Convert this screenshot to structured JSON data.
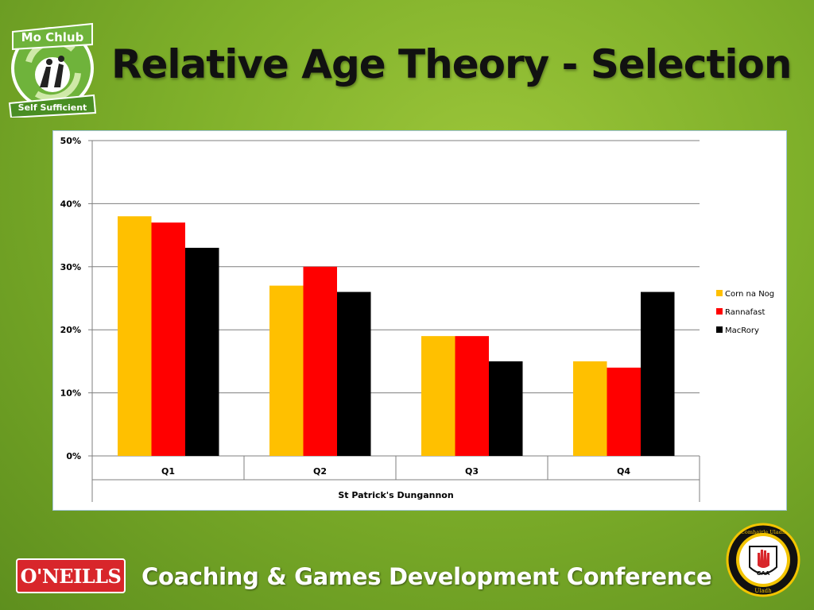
{
  "slide": {
    "title": "Relative Age Theory - Selection",
    "footer_brand": "O'NEILLS",
    "footer_text": "Coaching & Games Development Conference"
  },
  "logos": {
    "club_top": "Mo Chlub",
    "club_bottom": "Self Sufficient",
    "gaa_ring_top": "Comhairle Uladh",
    "gaa_ring_bottom": "Uladh",
    "gaa_mark": "GAA"
  },
  "colors": {
    "series_1": "#ffc000",
    "series_2": "#ff0000",
    "series_3": "#000000",
    "gridline": "#7f7f7f"
  },
  "chart_data": {
    "type": "bar",
    "categories": [
      "Q1",
      "Q2",
      "Q3",
      "Q4"
    ],
    "series": [
      {
        "name": "Corn na Nog",
        "values": [
          38,
          27,
          19,
          15
        ]
      },
      {
        "name": "Rannafast",
        "values": [
          37,
          30,
          19,
          14
        ]
      },
      {
        "name": "MacRory",
        "values": [
          33,
          26,
          15,
          26
        ]
      }
    ],
    "group_label": "St Patrick's Dungannon",
    "ylim": [
      0,
      50
    ],
    "y_ticks": [
      "0%",
      "10%",
      "20%",
      "30%",
      "40%",
      "50%"
    ],
    "grid": true,
    "legend_position": "right"
  }
}
